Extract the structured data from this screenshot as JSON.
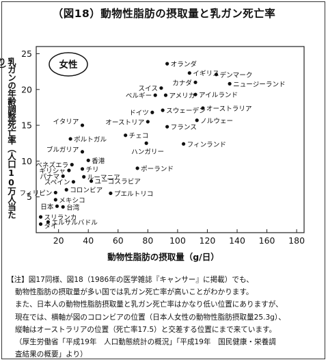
{
  "title": "（図18）動物性脂肪の摂取量と乳ガン死亡率",
  "chart_data": {
    "type": "scatter",
    "panel_label": "女性",
    "xlabel": "動物性脂肪の摂取量（g/日）",
    "ylabel": "乳ガンの年齢調整死亡率（人口10万人当たり）",
    "xlim": [
      5,
      185
    ],
    "ylim": [
      0,
      26
    ],
    "xticks": [
      20,
      40,
      60,
      80,
      100,
      120,
      140,
      160,
      180
    ],
    "yticks": [
      5,
      10,
      15,
      20,
      25
    ],
    "grid": false,
    "points": [
      {
        "label": "オランダ",
        "x": 93,
        "y": 23.6
      },
      {
        "label": "イギリス",
        "x": 108,
        "y": 22.3
      },
      {
        "label": "デンマーク",
        "x": 126,
        "y": 22.1
      },
      {
        "label": "カナダ",
        "x": 112,
        "y": 21
      },
      {
        "label": "ニュージーランド",
        "x": 135,
        "y": 20.8
      },
      {
        "label": "スイス",
        "x": 89,
        "y": 20.2
      },
      {
        "label": "ベルギー",
        "x": 85,
        "y": 19.2
      },
      {
        "label": "アメリカ",
        "x": 92,
        "y": 19.2
      },
      {
        "label": "アイルランド",
        "x": 112,
        "y": 19.3
      },
      {
        "label": "オーストラリア",
        "x": 117,
        "y": 17.4
      },
      {
        "label": "ドイツ",
        "x": 83,
        "y": 16.8
      },
      {
        "label": "スウェーデン",
        "x": 90,
        "y": 17.1
      },
      {
        "label": "ノルウェー",
        "x": 113,
        "y": 15.7
      },
      {
        "label": "フランス",
        "x": 93,
        "y": 14.8
      },
      {
        "label": "オーストリア",
        "x": 80,
        "y": 15.5
      },
      {
        "label": "イタリア",
        "x": 36,
        "y": 15
      },
      {
        "label": "ポルトガル",
        "x": 28,
        "y": 13.1
      },
      {
        "label": "チェコ",
        "x": 65,
        "y": 13.6
      },
      {
        "label": "ハンガリー",
        "x": 79,
        "y": 12.5
      },
      {
        "label": "フィンランド",
        "x": 104,
        "y": 12.4
      },
      {
        "label": "ブルガリア",
        "x": 36,
        "y": 11.3
      },
      {
        "label": "香港",
        "x": 40,
        "y": 10.1
      },
      {
        "label": "ベネズエラ",
        "x": 29,
        "y": 9.5
      },
      {
        "label": "ギリシャ",
        "x": 27,
        "y": 8.7
      },
      {
        "label": "チリ",
        "x": 36,
        "y": 8.9
      },
      {
        "label": "ポーランド",
        "x": 73,
        "y": 9.0
      },
      {
        "label": "パナマ",
        "x": 23,
        "y": 7.9
      },
      {
        "label": "ルーマニア",
        "x": 37,
        "y": 7.8
      },
      {
        "label": "スペイン",
        "x": 30,
        "y": 7.1
      },
      {
        "label": "ユーゴスラビア",
        "x": 42,
        "y": 7.2
      },
      {
        "label": "フィリピン",
        "x": 18,
        "y": 5.6
      },
      {
        "label": "コロンビア",
        "x": 25.3,
        "y": 6
      },
      {
        "label": "メキシコ",
        "x": 18,
        "y": 4.6
      },
      {
        "label": "プエルトリコ",
        "x": 55,
        "y": 5.5
      },
      {
        "label": "日本",
        "x": 19,
        "y": 3.7
      },
      {
        "label": "台湾",
        "x": 23,
        "y": 3.6
      },
      {
        "label": "スリランカ",
        "x": 8,
        "y": 2.2
      },
      {
        "label": "エルサルバドル",
        "x": 13,
        "y": 1.5
      },
      {
        "label": "タイ",
        "x": 8,
        "y": 1.2
      }
    ]
  },
  "note": {
    "lines": [
      "【注】図17同様、図18（1986年の医学雑誌『キャンサー』に掲載）でも、",
      "動物性脂肪の摂取量が多い国では乳ガン死亡率が高いことがわかります。",
      "また、日本人の動物性脂肪摂取量と乳ガン死亡率はかなり低い位置にありますが、",
      "現在では、横軸が図のコロンビアの位置（日本人女性の動物性脂肪摂取量25.3g）、",
      "縦軸はオーストラリアの位置（死亡率17.5）と交差する位置にまで来ています。",
      "（厚生労働省「平成19年　人口動態統計の概況」「平成19年　国民健康・栄養調",
      "査結果の概要」より）"
    ]
  }
}
